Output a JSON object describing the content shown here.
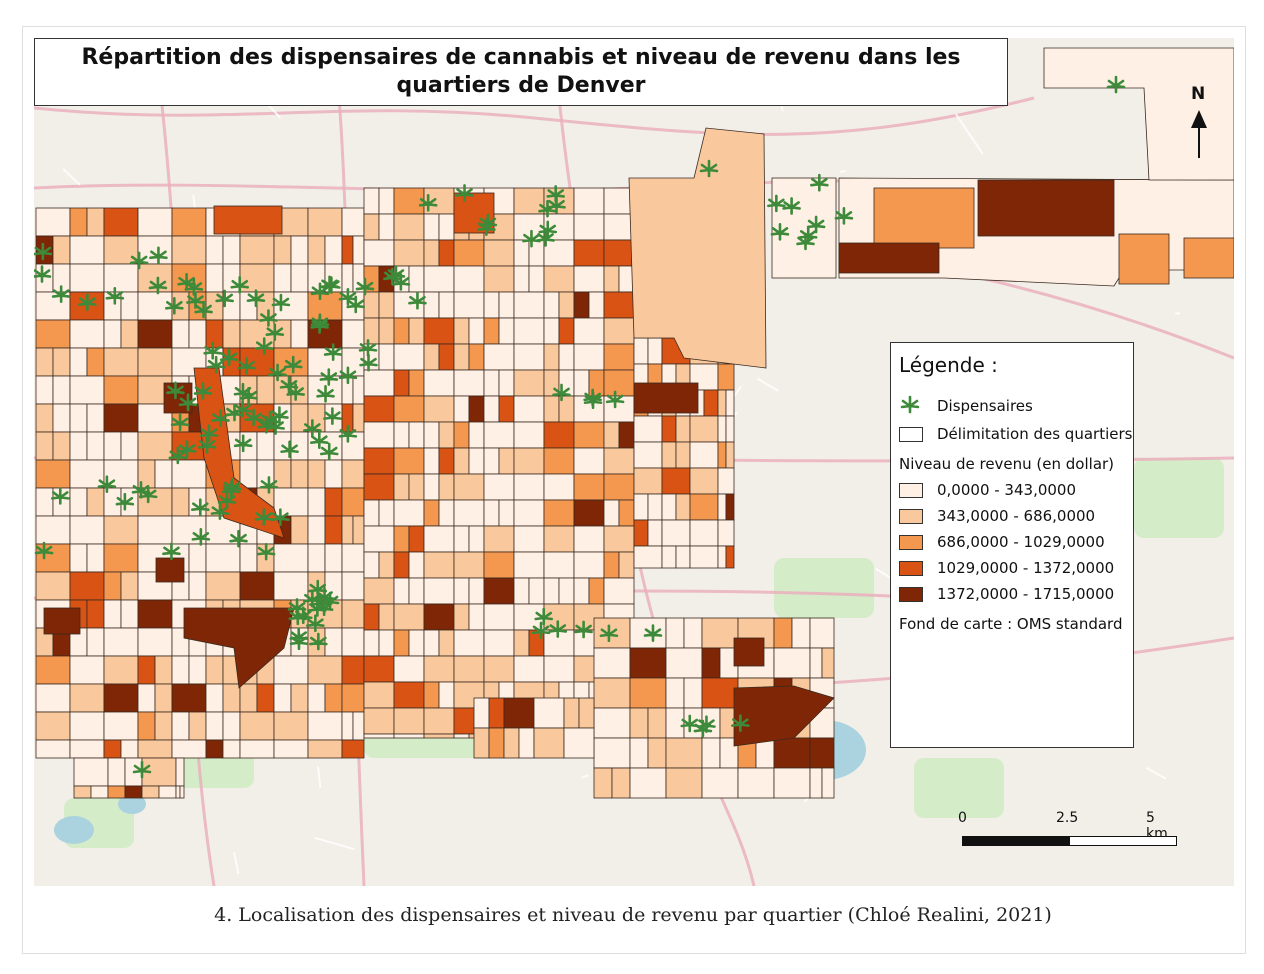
{
  "title": "Répartition des dispensaires de cannabis et niveau de revenu dans les quartiers de Denver",
  "north_label": "N",
  "legend": {
    "title": "Légende :",
    "dispensaries_label": "Dispensaires",
    "boundaries_label": "Délimitation des quartiers",
    "income_title": "Niveau de revenu (en dollar)",
    "classes": [
      {
        "label": "0,0000 - 343,0000",
        "color": "#fef0e4"
      },
      {
        "label": "343,0000 - 686,0000",
        "color": "#f9c89d"
      },
      {
        "label": "686,0000 - 1029,0000",
        "color": "#f4984f"
      },
      {
        "label": "1029,0000 - 1372,0000",
        "color": "#d95314"
      },
      {
        "label": "1372,0000 - 1715,0000",
        "color": "#7f2606"
      }
    ],
    "basemap": "Fond de carte : OMS standard"
  },
  "scale": {
    "ticks": [
      "0",
      "2.5",
      "5 km"
    ]
  },
  "caption": "4. Localisation des dispensaires et niveau de revenu par quartier (Chloé Realini, 2021)",
  "colors": {
    "dispensary_icon": "#3d8a3a",
    "boundary": "#3a2a20",
    "basemap": "#f2efe9"
  }
}
